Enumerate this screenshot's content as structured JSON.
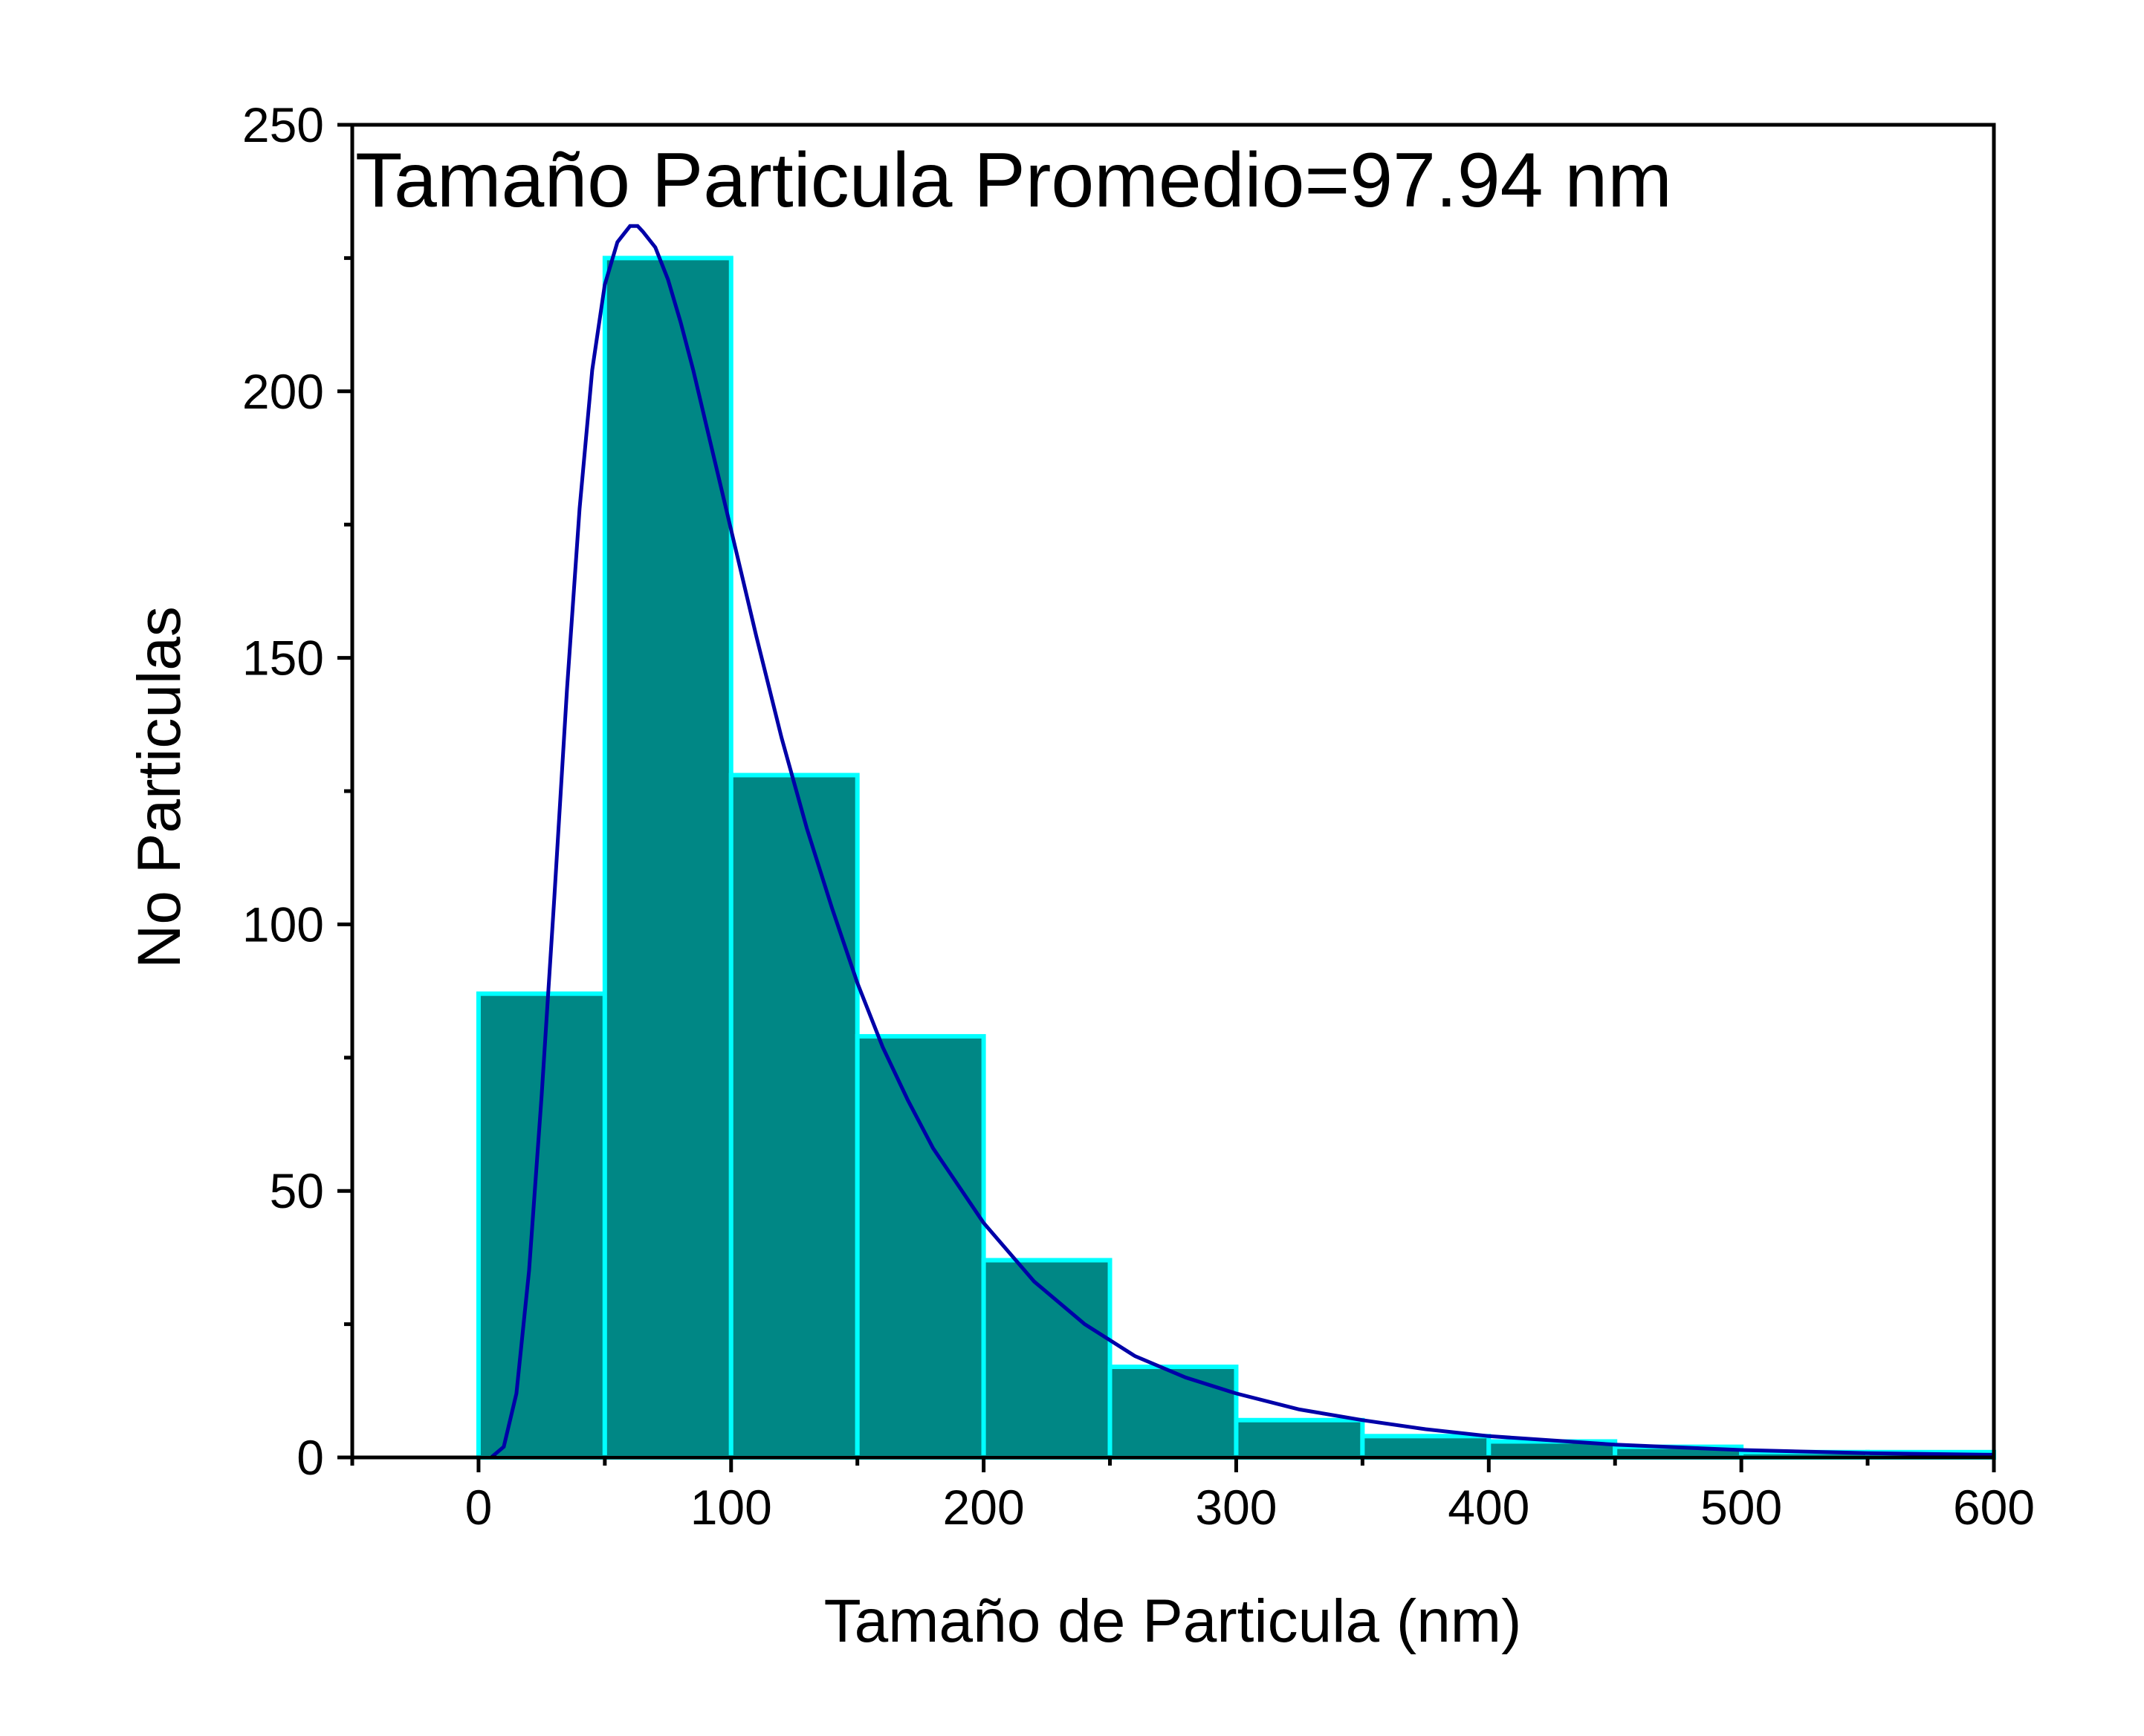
{
  "chart_data": {
    "type": "bar",
    "annotation": "Tamaño Particula Promedio=97.94 nm",
    "xlabel": "Tamaño de Particula (nm)",
    "ylabel": "No Particulas",
    "xlim": [
      -50,
      600
    ],
    "ylim": [
      0,
      250
    ],
    "xticks": [
      0,
      100,
      200,
      300,
      400,
      500,
      600
    ],
    "yticks": [
      0,
      50,
      100,
      150,
      200,
      250
    ],
    "bin_width": 50,
    "bins": [
      {
        "start": 0,
        "end": 50,
        "count": 87
      },
      {
        "start": 50,
        "end": 100,
        "count": 225
      },
      {
        "start": 100,
        "end": 150,
        "count": 128
      },
      {
        "start": 150,
        "end": 200,
        "count": 79
      },
      {
        "start": 200,
        "end": 250,
        "count": 37
      },
      {
        "start": 250,
        "end": 300,
        "count": 17
      },
      {
        "start": 300,
        "end": 350,
        "count": 7
      },
      {
        "start": 350,
        "end": 400,
        "count": 4
      },
      {
        "start": 400,
        "end": 450,
        "count": 3
      },
      {
        "start": 450,
        "end": 500,
        "count": 2
      },
      {
        "start": 500,
        "end": 550,
        "count": 1
      },
      {
        "start": 550,
        "end": 600,
        "count": 1
      }
    ],
    "fit_curve": {
      "type": "lognormal",
      "x": [
        5,
        10,
        15,
        20,
        25,
        30,
        35,
        40,
        45,
        50,
        55,
        60,
        63,
        65,
        70,
        75,
        80,
        85,
        90,
        95,
        100,
        110,
        120,
        130,
        140,
        150,
        160,
        170,
        180,
        190,
        200,
        220,
        240,
        260,
        280,
        300,
        325,
        350,
        375,
        400,
        450,
        500,
        550,
        600
      ],
      "y": [
        0.0,
        2,
        12,
        35,
        68,
        105,
        144,
        178,
        204,
        220,
        228,
        231,
        231,
        230,
        227,
        221,
        213,
        204,
        194,
        184,
        174,
        154,
        135,
        118,
        103,
        89,
        77,
        67,
        58,
        51,
        44,
        33,
        25,
        19,
        15,
        12,
        9,
        7,
        5.3,
        4,
        2.4,
        1.4,
        0.8,
        0.5
      ]
    },
    "grid": false,
    "colors": {
      "bar_fill": "#008785",
      "bar_edge": "#00ffff",
      "curve": "#0000a8",
      "axes": "#000000"
    }
  }
}
